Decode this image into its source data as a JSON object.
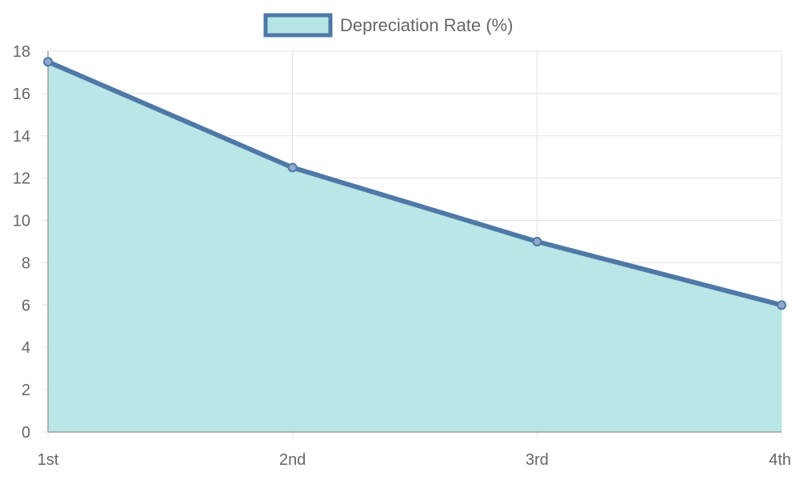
{
  "chart_data": {
    "type": "area",
    "categories": [
      "1st",
      "2nd",
      "3rd",
      "4th"
    ],
    "series": [
      {
        "name": "Depreciation Rate (%)",
        "values": [
          17.5,
          12.5,
          9,
          6
        ]
      }
    ],
    "title": "",
    "xlabel": "",
    "ylabel": "",
    "ylim": [
      0,
      18
    ],
    "yticks": [
      0,
      2,
      4,
      6,
      8,
      10,
      12,
      14,
      16,
      18
    ],
    "grid": true,
    "legend_position": "top-center",
    "colors": {
      "line": "#4e79a7",
      "fill": "#b5e5e5",
      "grid": "#e1e1e1",
      "axis": "#9e9e9e",
      "text": "#666666"
    }
  }
}
